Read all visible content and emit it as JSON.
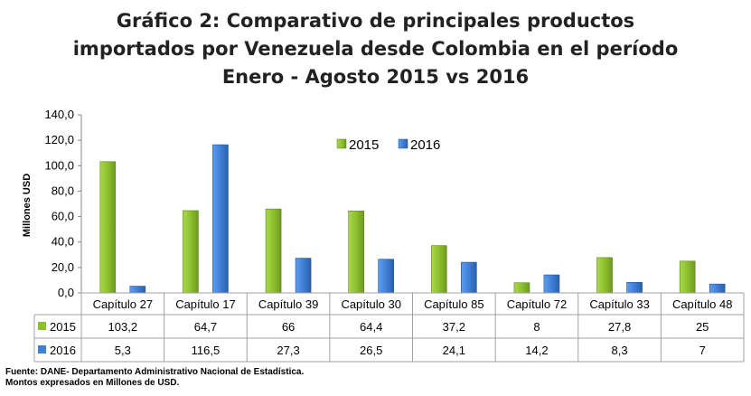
{
  "title_lines": [
    "Gráfico 2: Comparativo de principales productos",
    "importados por Venezuela desde Colombia en el período",
    "Enero - Agosto 2015 vs 2016"
  ],
  "source_lines": [
    "Fuente: DANE- Departamento Administrativo Nacional de Estadística.",
    "Montos expresados en Millones de USD."
  ],
  "colors": {
    "s2015": "#8dc02f",
    "s2016": "#3f7fd6"
  },
  "chart_data": {
    "type": "bar",
    "title": "Gráfico 2: Comparativo de principales productos importados por Venezuela desde Colombia en el período Enero - Agosto 2015 vs 2016",
    "ylabel": "Millones USD",
    "xlabel": "",
    "ylim": [
      0,
      140
    ],
    "yticks": [
      "0,0",
      "20,0",
      "40,0",
      "60,0",
      "80,0",
      "100,0",
      "120,0",
      "140,0"
    ],
    "categories": [
      "Capítulo 27",
      "Capítulo 17",
      "Capítulo 39",
      "Capítulo 30",
      "Capítulo 85",
      "Capítulo 72",
      "Capítulo 33",
      "Capítulo 48"
    ],
    "series": [
      {
        "name": "2015",
        "values": [
          103.2,
          64.7,
          66,
          64.4,
          37.2,
          8,
          27.8,
          25
        ],
        "labels": [
          "103,2",
          "64,7",
          "66",
          "64,4",
          "37,2",
          "8",
          "27,8",
          "25"
        ]
      },
      {
        "name": "2016",
        "values": [
          5.3,
          116.5,
          27.3,
          26.5,
          24.1,
          14.2,
          8.3,
          7
        ],
        "labels": [
          "5,3",
          "116,5",
          "27,3",
          "26,5",
          "24,1",
          "14,2",
          "8,3",
          "7"
        ]
      }
    ],
    "legend": "top-center",
    "grid": false,
    "data_table": true
  }
}
